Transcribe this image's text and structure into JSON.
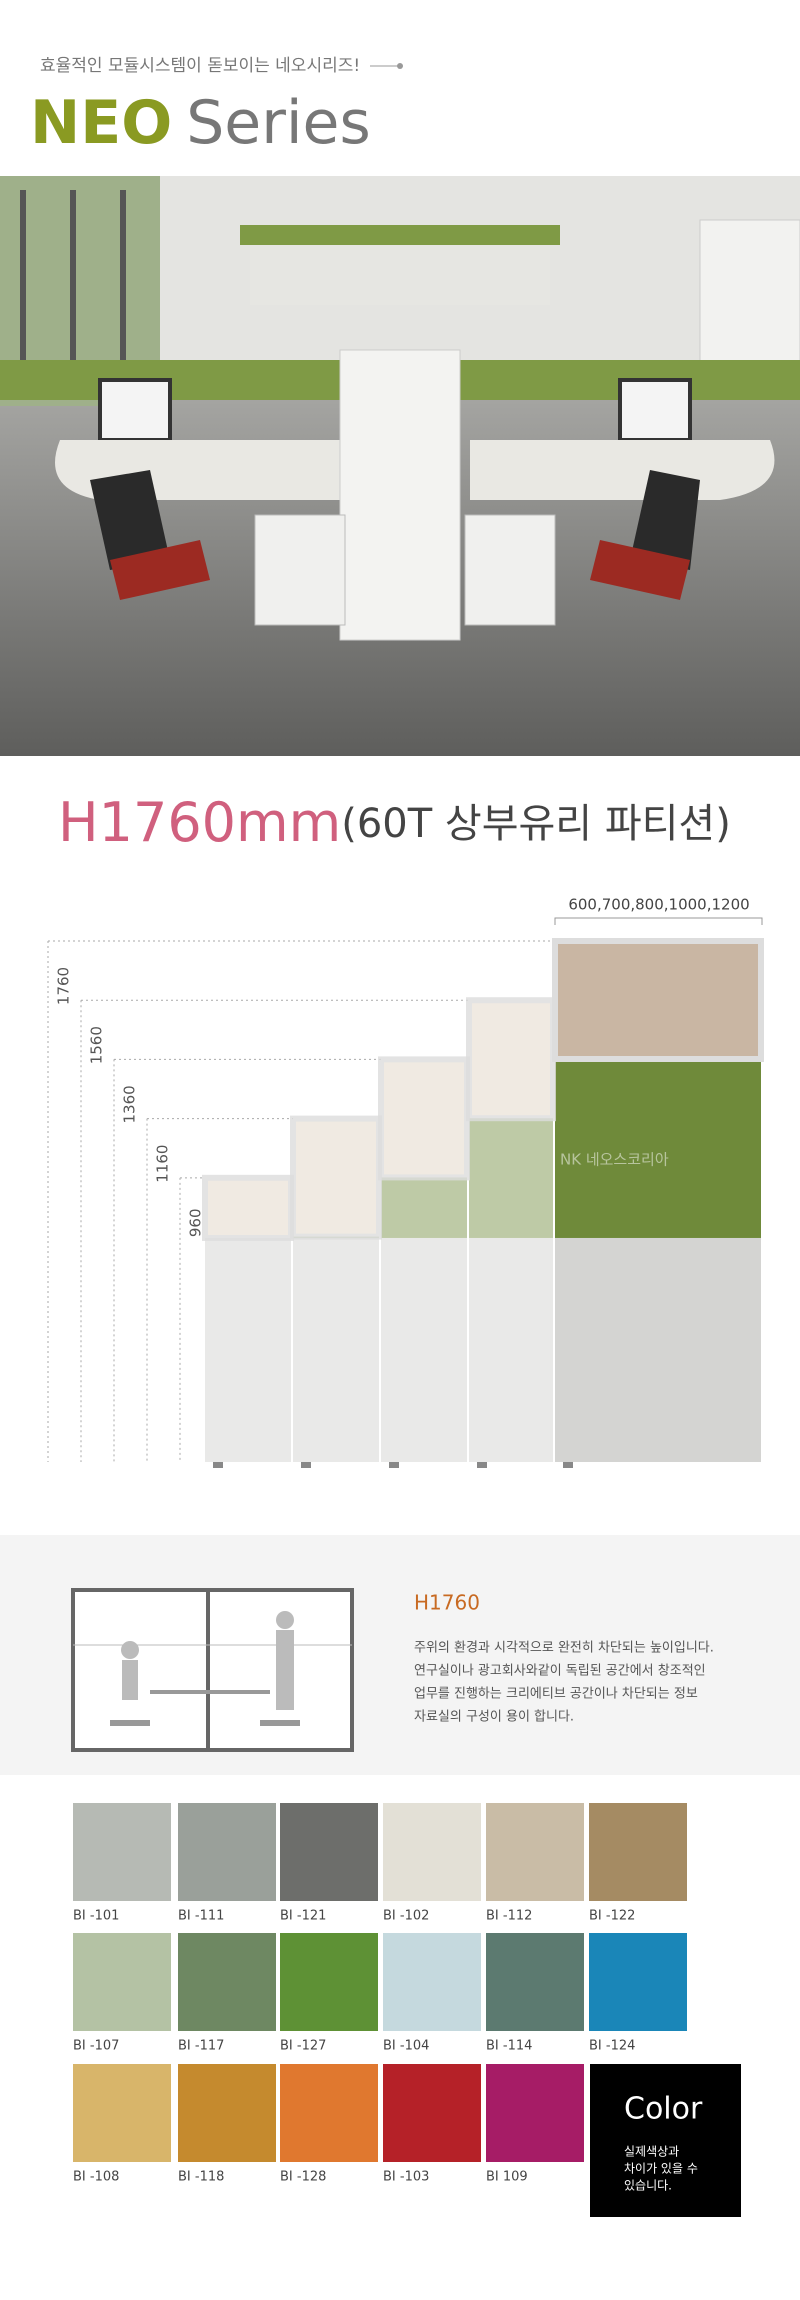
{
  "header": {
    "tagline": "효율적인 모듈시스템이 돋보이는 네오시리즈!",
    "title_bold": "NEO",
    "title_light": "Series"
  },
  "heading": {
    "size": "H1760mm",
    "detail": "(60T 상부유리 파티션)"
  },
  "diagram": {
    "width_label": "600,700,800,1000,1200",
    "heights": [
      1760,
      1560,
      1360,
      1160,
      960
    ],
    "watermark": "NK 네오스코리아"
  },
  "section": {
    "title": "H1760",
    "lines": [
      "주위의 환경과 시각적으로 완전히 차단되는 높이입니다.",
      "연구실이나 광고회사와같이 독립된 공간에서 창조적인",
      "업무를 진행하는 크리에티브 공간이나 차단되는 정보",
      "자료실의 구성이 용이 합니다."
    ]
  },
  "swatches": [
    {
      "code": "BI -101",
      "color": "#b6bab4"
    },
    {
      "code": "BI -111",
      "color": "#9aa09a"
    },
    {
      "code": "BI -121",
      "color": "#6d6e6b"
    },
    {
      "code": "BI -102",
      "color": "#e3e0d6"
    },
    {
      "code": "BI -112",
      "color": "#c9bca6"
    },
    {
      "code": "BI -122",
      "color": "#a58b63"
    },
    {
      "code": "BI -107",
      "color": "#b4c2a4"
    },
    {
      "code": "BI -117",
      "color": "#6e8862"
    },
    {
      "code": "BI -127",
      "color": "#5e9135"
    },
    {
      "code": "BI -104",
      "color": "#c5d9de"
    },
    {
      "code": "BI -114",
      "color": "#5c7a70"
    },
    {
      "code": "BI -124",
      "color": "#1a86b8"
    },
    {
      "code": "BI -108",
      "color": "#d8b56a"
    },
    {
      "code": "BI -118",
      "color": "#c58a2e"
    },
    {
      "code": "BI -128",
      "color": "#e0782f"
    },
    {
      "code": "BI -103",
      "color": "#b52128"
    },
    {
      "code": "BI 109",
      "color": "#a61c66"
    }
  ],
  "color_note": {
    "title": "Color",
    "lines": [
      "실제색상과",
      "차이가 있을 수",
      "있습니다."
    ]
  }
}
